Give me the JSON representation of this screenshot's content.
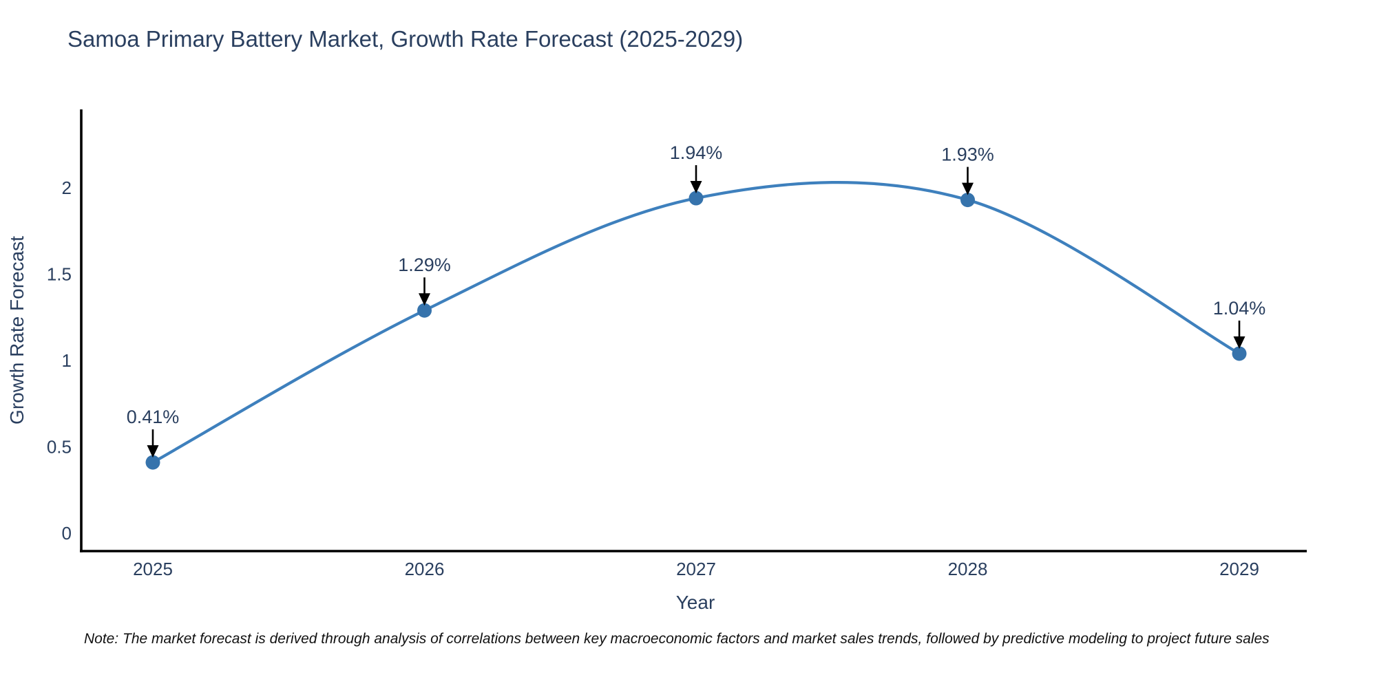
{
  "chart_data": {
    "type": "line",
    "line_shape": "spline",
    "title": "Samoa Primary Battery Market, Growth Rate Forecast (2025-2029)",
    "xlabel": "Year",
    "ylabel": "Growth Rate Forecast",
    "x": [
      2025,
      2026,
      2027,
      2028,
      2029
    ],
    "x_tick_labels": [
      "2025",
      "2026",
      "2027",
      "2028",
      "2029"
    ],
    "series": [
      {
        "name": "Growth Rate Forecast",
        "values": [
          0.41,
          1.29,
          1.94,
          1.93,
          1.04
        ]
      }
    ],
    "point_labels": [
      "0.41%",
      "1.29%",
      "1.94%",
      "1.93%",
      "1.04%"
    ],
    "y_ticks": [
      0,
      0.5,
      1,
      1.5,
      2
    ],
    "y_tick_labels": [
      "0",
      "0.5",
      "1",
      "1.5",
      "2"
    ],
    "ylim": [
      -0.1,
      2.45
    ],
    "grid": false,
    "legend": "none",
    "note": "Note: The market forecast is derived through analysis of correlations between key macroeconomic factors and market sales trends, followed by predictive modeling to project future sales",
    "colors": {
      "line": "#3e80bd",
      "marker": "#3673ac",
      "axis_line": "#000000",
      "text": "#2a3f5f",
      "annotation_text": "#2a3f5f",
      "arrow": "#000000",
      "background": "#ffffff"
    }
  }
}
